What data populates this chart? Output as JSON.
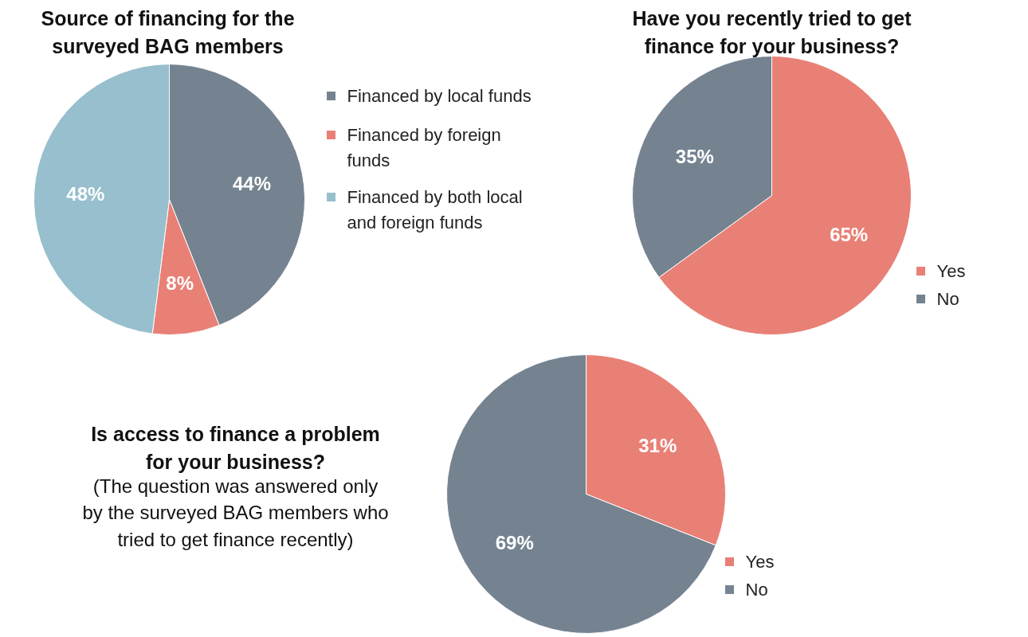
{
  "chart_data": [
    {
      "type": "pie",
      "title": "Source of financing for the surveyed BAG members",
      "categories": [
        "Financed by local funds",
        "Financed by foreign funds",
        "Financed by both local and foreign funds"
      ],
      "values": [
        44,
        8,
        48
      ],
      "colors": [
        "#758391",
        "#e98076",
        "#97bfcd"
      ],
      "value_labels": [
        "44%",
        "8%",
        "48%"
      ],
      "legend": "right"
    },
    {
      "type": "pie",
      "title": "Have you recently tried to get finance for your business?",
      "categories": [
        "Yes",
        "No"
      ],
      "values": [
        65,
        35
      ],
      "colors": [
        "#e98076",
        "#758391"
      ],
      "value_labels": [
        "65%",
        "35%"
      ],
      "legend": "bottom right"
    },
    {
      "type": "pie",
      "title": "Is access to finance a problem for your business?",
      "subtitle": "(The question was answered only by the surveyed BAG members who tried to get finance recently)",
      "categories": [
        "Yes",
        "No"
      ],
      "values": [
        31,
        69
      ],
      "colors": [
        "#e98076",
        "#758391"
      ],
      "value_labels": [
        "31%",
        "69%"
      ],
      "legend": "bottom right"
    }
  ]
}
